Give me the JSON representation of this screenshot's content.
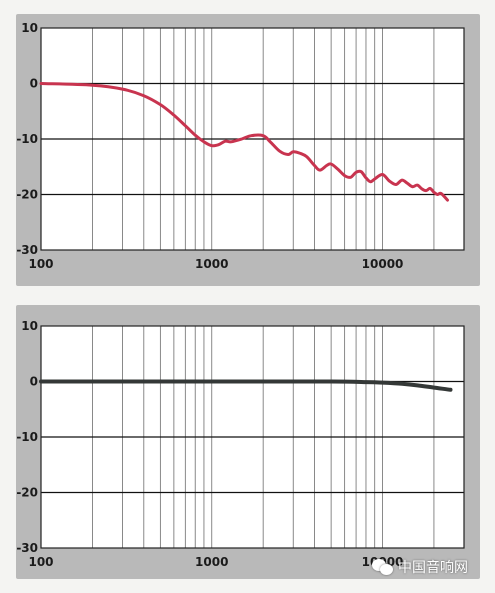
{
  "colors": {
    "panel": "#b9b9b9",
    "plot_bg": "#ffffff",
    "grid": "#6c6c6c",
    "major_grid": "#111111",
    "curve_top": "#c8344f",
    "curve_bottom": "#343837"
  },
  "watermark": {
    "icon": "wechat-icon",
    "text": "中国音响网"
  },
  "chart_data": [
    {
      "type": "line",
      "x_scale": "log",
      "xlim": [
        100,
        30000
      ],
      "ylim": [
        -30,
        10
      ],
      "x_tick_labels": [
        "100",
        "1000",
        "10000"
      ],
      "y_tick_labels": [
        "10",
        "0",
        "-10",
        "-20",
        "-30"
      ],
      "grid": true,
      "series": [
        {
          "x": [
            100,
            200,
            300,
            400,
            500,
            600,
            700,
            800,
            900,
            1000,
            1100,
            1200,
            1300,
            1500,
            1700,
            2000,
            2200,
            2500,
            2800,
            3000,
            3300,
            3600,
            4000,
            4300,
            4700,
            5000,
            5500,
            6000,
            6500,
            7000,
            7500,
            8000,
            8500,
            9000,
            10000,
            11000,
            12000,
            13000,
            14000,
            15000,
            16000,
            17000,
            18000,
            19000,
            20000,
            21000,
            22000,
            24000
          ],
          "y": [
            0.0,
            -0.3,
            -1.0,
            -2.2,
            -3.8,
            -5.7,
            -7.6,
            -9.3,
            -10.5,
            -11.2,
            -11.0,
            -10.4,
            -10.5,
            -10.0,
            -9.4,
            -9.4,
            -10.5,
            -12.2,
            -12.8,
            -12.3,
            -12.6,
            -13.2,
            -14.8,
            -15.6,
            -14.8,
            -14.5,
            -15.5,
            -16.6,
            -16.9,
            -16.0,
            -15.9,
            -17.0,
            -17.7,
            -17.2,
            -16.4,
            -17.6,
            -18.2,
            -17.4,
            -18.0,
            -18.6,
            -18.3,
            -19.0,
            -19.3,
            -18.9,
            -19.6,
            -20.0,
            -19.8,
            -21.0
          ]
        }
      ]
    },
    {
      "type": "line",
      "x_scale": "log",
      "xlim": [
        100,
        30000
      ],
      "ylim": [
        -30,
        10
      ],
      "x_tick_labels": [
        "100",
        "1000",
        "10000"
      ],
      "y_tick_labels": [
        "10",
        "0",
        "-10",
        "-20",
        "-30"
      ],
      "grid": true,
      "series": [
        {
          "x": [
            100,
            500,
            1000,
            2000,
            5000,
            8000,
            10000,
            13000,
            16000,
            20000,
            25000
          ],
          "y": [
            0.0,
            0.0,
            0.0,
            0.0,
            0.0,
            -0.1,
            -0.2,
            -0.4,
            -0.7,
            -1.1,
            -1.5
          ]
        }
      ]
    }
  ]
}
